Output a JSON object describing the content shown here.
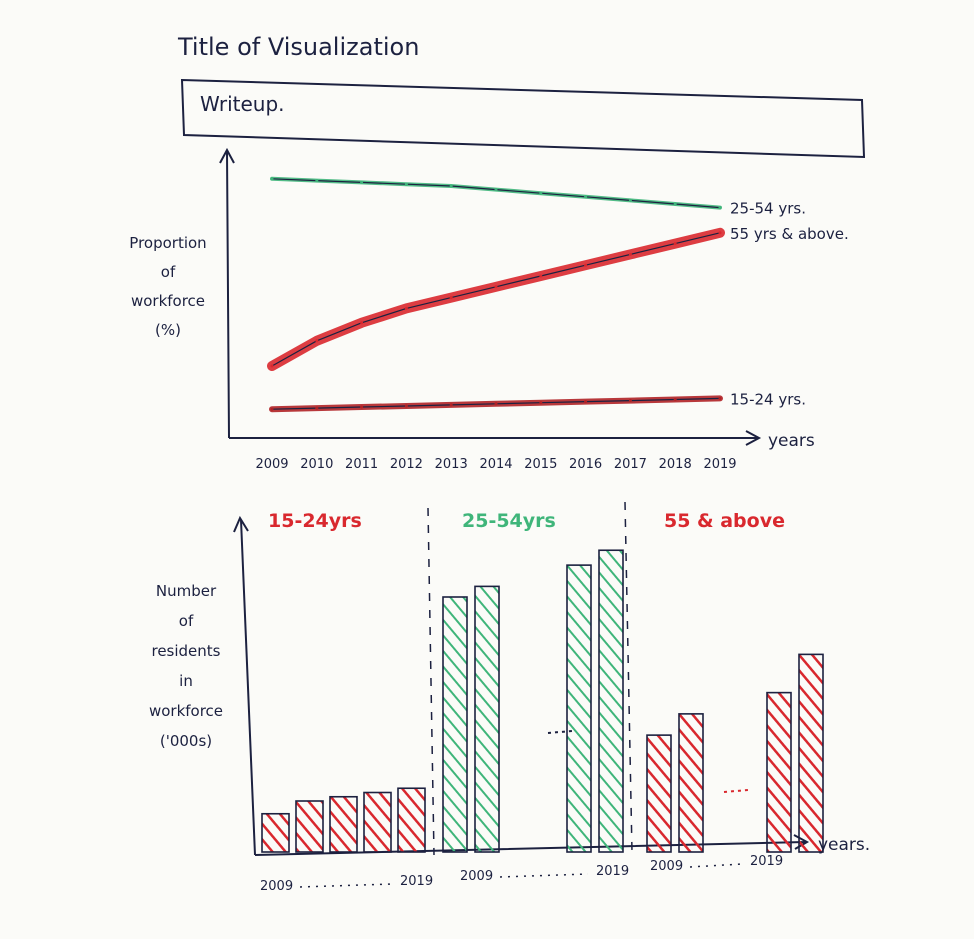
{
  "title": "Title of Visualization",
  "writeup": "Writeup.",
  "colors": {
    "ink": "#1c2140",
    "green": "#3fb57a",
    "red": "#d9282e",
    "paper": "#fbfbf8"
  },
  "chart_data": [
    {
      "type": "line",
      "ylabel": [
        "Proportion",
        "of",
        "workforce",
        "(%)"
      ],
      "xlabel": "years",
      "categories": [
        "2009",
        "2010",
        "2011",
        "2012",
        "2013",
        "2014",
        "2015",
        "2016",
        "2017",
        "2018",
        "2019"
      ],
      "series": [
        {
          "name": "25-54 yrs.",
          "color": "#3fb57a",
          "values": [
            72,
            71.5,
            71,
            70.5,
            70,
            69,
            68,
            67,
            66,
            65,
            64
          ]
        },
        {
          "name": "55 yrs & above.",
          "color": "#d9282e",
          "values": [
            20,
            27,
            32,
            36,
            39,
            42,
            45,
            48,
            51,
            54,
            57
          ]
        },
        {
          "name": "15-24 yrs.",
          "color": "#b02226",
          "values": [
            8,
            8.3,
            8.6,
            8.9,
            9.2,
            9.5,
            9.8,
            10.1,
            10.4,
            10.7,
            11
          ]
        }
      ],
      "ylim": [
        0,
        80
      ]
    },
    {
      "type": "bar",
      "ylabel": [
        "Number",
        "of",
        "residents",
        "in",
        "workforce",
        "('000s)"
      ],
      "xlabel": "years.",
      "groups": [
        {
          "label": "15-24yrs",
          "color": "#d9282e",
          "start_label": "2009",
          "end_label": "2019",
          "values": [
            18,
            24,
            26,
            28,
            30
          ]
        },
        {
          "label": "25-54yrs",
          "color": "#3fb57a",
          "start_label": "2009",
          "end_label": "2019",
          "values": [
            120,
            125,
            135,
            142
          ]
        },
        {
          "label": "55 & above",
          "color": "#d9282e",
          "start_label": "2009",
          "end_label": "2019",
          "values": [
            55,
            65,
            75,
            93
          ]
        }
      ],
      "ylim": [
        0,
        160
      ]
    }
  ]
}
